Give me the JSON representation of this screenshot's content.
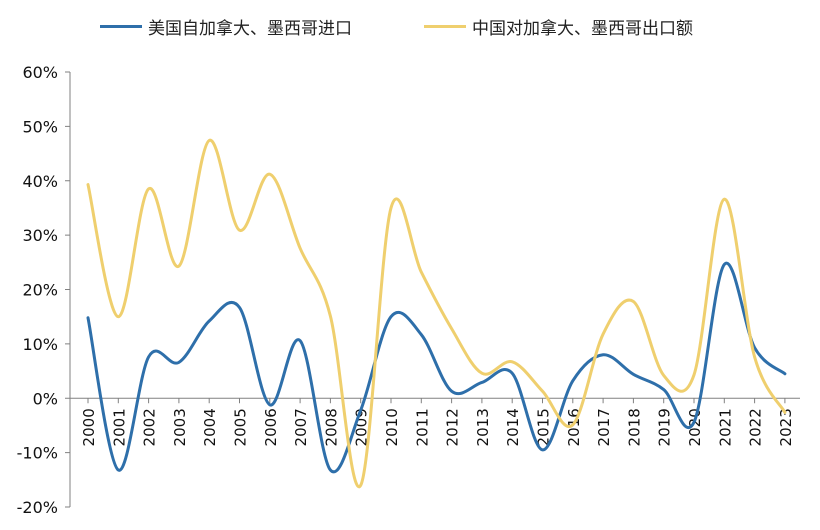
{
  "chart_data": {
    "type": "line",
    "title": "",
    "xlabel": "",
    "ylabel": "",
    "ylim": [
      -0.2,
      0.6
    ],
    "yticks": [
      -0.2,
      -0.1,
      0.0,
      0.1,
      0.2,
      0.3,
      0.4,
      0.5,
      0.6
    ],
    "ytick_labels": [
      "-20%",
      "-10%",
      "0%",
      "10%",
      "20%",
      "30%",
      "40%",
      "50%",
      "60%"
    ],
    "grid": false,
    "legend_position": "top",
    "categories": [
      "2000",
      "2001",
      "2002",
      "2003",
      "2004",
      "2005",
      "2006",
      "2007",
      "2008",
      "2009",
      "2010",
      "2011",
      "2012",
      "2013",
      "2014",
      "2015",
      "2016",
      "2017",
      "2018",
      "2019",
      "2020",
      "2021",
      "2022",
      "2023"
    ],
    "series": [
      {
        "name": "美国自加拿大、墨西哥进口",
        "color": "#2E6FAA",
        "values": [
          0.148,
          -0.132,
          0.076,
          0.066,
          0.142,
          0.167,
          -0.012,
          0.106,
          -0.132,
          -0.022,
          0.15,
          0.117,
          0.013,
          0.029,
          0.046,
          -0.095,
          0.032,
          0.08,
          0.044,
          0.016,
          -0.044,
          0.246,
          0.093,
          0.045
        ]
      },
      {
        "name": "中国对加拿大、墨西哥出口额",
        "color": "#EFCF6E",
        "values": [
          0.393,
          0.15,
          0.385,
          0.243,
          0.474,
          0.309,
          0.412,
          0.276,
          0.151,
          -0.16,
          0.35,
          0.232,
          0.128,
          0.046,
          0.067,
          0.013,
          -0.049,
          0.118,
          0.178,
          0.042,
          0.043,
          0.366,
          0.076,
          -0.026
        ]
      }
    ]
  }
}
